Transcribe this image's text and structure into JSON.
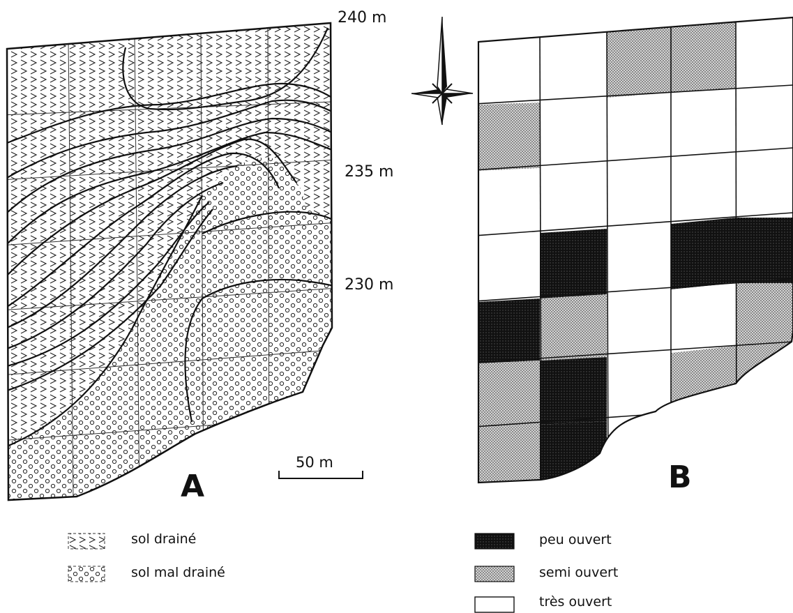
{
  "panel_a": {
    "letter": "A",
    "contour_labels": [
      "240 m",
      "235 m",
      "230 m"
    ],
    "scale_bar": "50 m",
    "legend": [
      {
        "key": "sol_draine",
        "label": "sol drainé",
        "pattern": "chevrons"
      },
      {
        "key": "sol_mal_draine",
        "label": "sol mal drainé",
        "pattern": "circles"
      }
    ]
  },
  "panel_b": {
    "letter": "B",
    "legend": [
      {
        "key": "peu",
        "label": "peu ouvert",
        "color": "#000000"
      },
      {
        "key": "semi",
        "label": "semi ouvert",
        "color": "#bdbdbd"
      },
      {
        "key": "tres",
        "label": "très ouvert",
        "color": "#ffffff"
      }
    ],
    "grid": [
      [
        "tres",
        "tres",
        "semi",
        "semi",
        "tres"
      ],
      [
        "semi",
        "tres",
        "tres",
        "tres",
        "tres"
      ],
      [
        "tres",
        "tres",
        "tres",
        "tres",
        "tres"
      ],
      [
        "tres",
        "peu",
        "tres",
        "peu",
        "peu"
      ],
      [
        "peu",
        "semi",
        "tres",
        "tres",
        "semi"
      ],
      [
        "semi",
        "peu",
        "tres",
        "semi",
        "semi"
      ],
      [
        "semi",
        "peu",
        "tres",
        "tres",
        "tres"
      ]
    ]
  },
  "colors": {
    "ink": "#111111",
    "semi_fill": "#bdbdbd",
    "peu_fill": "#000000"
  },
  "icons": {
    "north_arrow": "compass-rose-icon"
  }
}
